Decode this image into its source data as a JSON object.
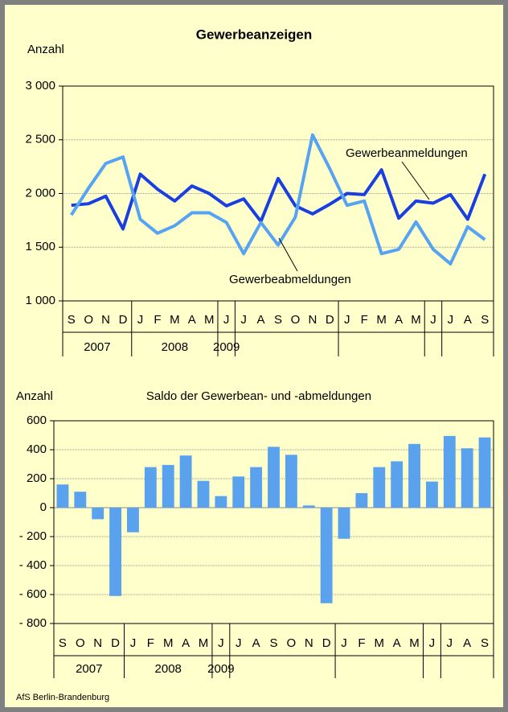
{
  "chart_data": [
    {
      "type": "line",
      "title": "Gewerbeanzeigen",
      "ylabel": "Anzahl",
      "categories": [
        "S",
        "O",
        "N",
        "D",
        "J",
        "F",
        "M",
        "A",
        "M",
        "J",
        "J",
        "A",
        "S",
        "O",
        "N",
        "D",
        "J",
        "F",
        "M",
        "A",
        "M",
        "J",
        "J",
        "A",
        "S"
      ],
      "years": [
        "2007",
        "2008",
        "2009"
      ],
      "series": [
        {
          "name": "Gewerbeanmeldungen",
          "color": "#1a3fe0",
          "values": [
            1890,
            1905,
            1975,
            1670,
            2180,
            2040,
            1930,
            2070,
            2000,
            1885,
            1950,
            1740,
            2140,
            1885,
            1810,
            1900,
            2000,
            1990,
            2220,
            1770,
            1930,
            1910,
            1990,
            1760,
            2180
          ]
        },
        {
          "name": "Gewerbeabmeldungen",
          "color": "#55a3f2",
          "values": [
            1800,
            2050,
            2280,
            2340,
            1760,
            1630,
            1700,
            1820,
            1820,
            1730,
            1440,
            1730,
            1520,
            1780,
            2545,
            2230,
            1890,
            1930,
            1440,
            1480,
            1735,
            1480,
            1345,
            1690,
            1570
          ]
        }
      ],
      "ylim": [
        1000,
        3000
      ],
      "yticks": [
        {
          "value": 1000,
          "label": "1 000"
        },
        {
          "value": 1500,
          "label": "1 500"
        },
        {
          "value": 2000,
          "label": "2 000"
        },
        {
          "value": 2500,
          "label": "2 500"
        },
        {
          "value": 3000,
          "label": "3 000"
        }
      ],
      "grid": true
    },
    {
      "type": "bar",
      "title": "Saldo der Gewerbean- und -abmeldungen",
      "ylabel": "Anzahl",
      "categories": [
        "S",
        "O",
        "N",
        "D",
        "J",
        "F",
        "M",
        "A",
        "M",
        "J",
        "J",
        "A",
        "S",
        "O",
        "N",
        "D",
        "J",
        "F",
        "M",
        "A",
        "M",
        "J",
        "J",
        "A",
        "S"
      ],
      "years": [
        "2007",
        "2008",
        "2009"
      ],
      "color": "#5aa2ee",
      "values": [
        160,
        110,
        -80,
        -610,
        -170,
        280,
        295,
        360,
        185,
        80,
        215,
        280,
        420,
        365,
        15,
        -660,
        -215,
        100,
        280,
        320,
        440,
        180,
        495,
        410,
        485
      ],
      "ylim": [
        -800,
        600
      ],
      "yticks": [
        {
          "value": -800,
          "label": "- 800"
        },
        {
          "value": -600,
          "label": "- 600"
        },
        {
          "value": -400,
          "label": "- 400"
        },
        {
          "value": -200,
          "label": "- 200"
        },
        0,
        200,
        400,
        600
      ],
      "grid": true
    }
  ],
  "source": "AfS Berlin-Brandenburg"
}
